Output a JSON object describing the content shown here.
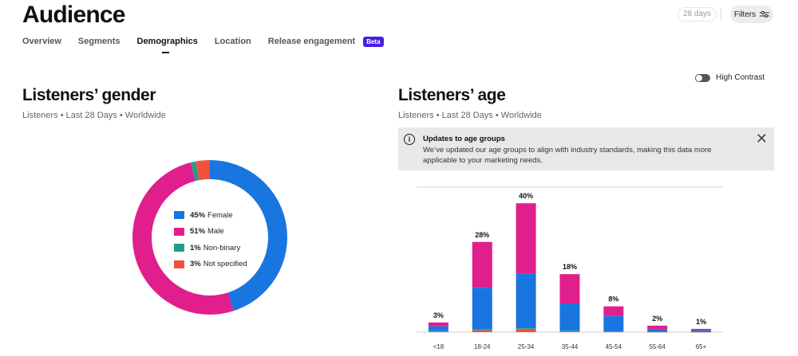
{
  "header": {
    "title": "Audience",
    "date_range": "28 days",
    "filters_label": "Filters"
  },
  "tabs": [
    {
      "label": "Overview",
      "active": false
    },
    {
      "label": "Segments",
      "active": false
    },
    {
      "label": "Demographics",
      "active": true
    },
    {
      "label": "Location",
      "active": false
    },
    {
      "label": "Release engagement",
      "active": false
    }
  ],
  "beta_badge": "Beta",
  "high_contrast_label": "High Contrast",
  "gender": {
    "title": "Listeners’ gender",
    "subtitle": "Listeners • Last 28 Days • Worldwide",
    "legend": [
      {
        "pct": "45%",
        "label": "Female",
        "color": "#1976e0"
      },
      {
        "pct": "51%",
        "label": "Male",
        "color": "#e01f8c"
      },
      {
        "pct": "1%",
        "label": "Non-binary",
        "color": "#1f9e8a"
      },
      {
        "pct": "3%",
        "label": "Not specified",
        "color": "#f2503f"
      }
    ]
  },
  "age": {
    "title": "Listeners’ age",
    "subtitle": "Listeners • Last 28 Days • Worldwide",
    "notice": {
      "title": "Updates to age groups",
      "text": "We’ve updated our age groups to align with industry standards, making this data more applicable to your marketing needs.",
      "icon": "info-icon"
    }
  },
  "chart_data": [
    {
      "type": "pie",
      "categories": [
        "Female",
        "Male",
        "Non-binary",
        "Not specified"
      ],
      "values": [
        45,
        51,
        1,
        3
      ],
      "colors": [
        "#1976e0",
        "#e01f8c",
        "#1f9e8a",
        "#f2503f"
      ],
      "legend": "center"
    },
    {
      "type": "bar",
      "stacked": true,
      "categories": [
        "<18",
        "18-24",
        "25-34",
        "35-44",
        "45-54",
        "55-64",
        "65+"
      ],
      "totals": [
        3,
        28,
        40,
        18,
        8,
        2,
        1
      ],
      "total_labels": [
        "3%",
        "28%",
        "40%",
        "18%",
        "8%",
        "2%",
        "1%"
      ],
      "series": [
        {
          "values": [
            1.5,
            13,
            17,
            8.5,
            4.8,
            0.9,
            0.5
          ],
          "color": "#1976e0"
        },
        {
          "values": [
            1.2,
            14.2,
            21.8,
            9.1,
            3.0,
            1.0,
            0.4
          ],
          "color": "#e01f8c"
        },
        {
          "values": [
            0.1,
            0.2,
            0.2,
            0.1,
            0.1,
            0.05,
            0.05
          ],
          "color": "#1f9e8a"
        },
        {
          "values": [
            0.2,
            0.6,
            1.0,
            0.3,
            0.1,
            0.05,
            0.05
          ],
          "color": "#f2503f"
        }
      ],
      "ylim": [
        0,
        45
      ]
    }
  ]
}
